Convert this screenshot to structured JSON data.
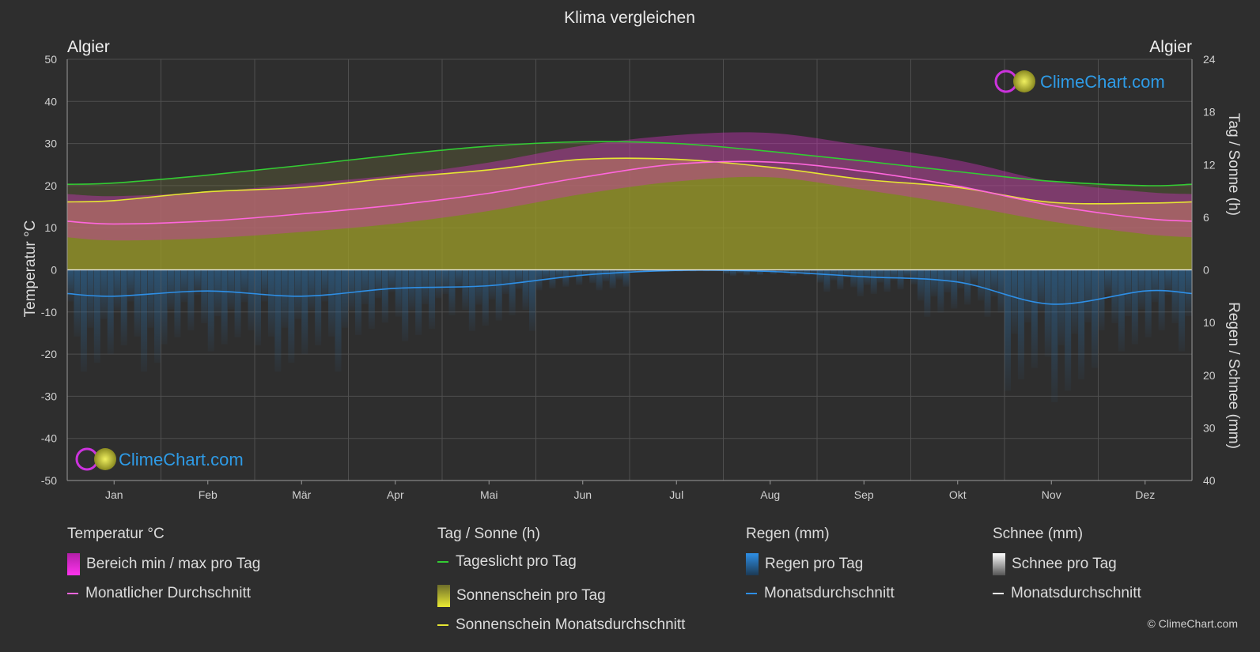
{
  "chart_data": {
    "type": "area",
    "title": "Klima vergleichen",
    "location_left": "Algier",
    "location_right": "Algier",
    "ylabel_left": "Temperatur °C",
    "ylabel_right_top": "Tag / Sonne (h)",
    "ylabel_right_bottom": "Regen / Schnee (mm)",
    "ylim_left": [
      -50,
      50
    ],
    "left_ticks": [
      50,
      40,
      30,
      20,
      10,
      0,
      -10,
      -20,
      -30,
      -40,
      -50
    ],
    "right_top_ticks": [
      24,
      18,
      12,
      6,
      0
    ],
    "right_bottom_ticks": [
      10,
      20,
      30,
      40
    ],
    "months": [
      "Jan",
      "Feb",
      "Mär",
      "Apr",
      "Mai",
      "Jun",
      "Jul",
      "Aug",
      "Sep",
      "Okt",
      "Nov",
      "Dez"
    ],
    "grid": true,
    "series": [
      {
        "name": "Tageslicht pro Tag",
        "unit": "h",
        "color": "#33cc33",
        "values": [
          9.9,
          10.8,
          11.9,
          13.1,
          14.1,
          14.6,
          14.4,
          13.5,
          12.4,
          11.2,
          10.1,
          9.6
        ]
      },
      {
        "name": "Sonnenschein Monatsdurchschnitt",
        "unit": "h",
        "color": "#e6e633",
        "values": [
          7.9,
          8.9,
          9.4,
          10.5,
          11.4,
          12.6,
          12.6,
          11.7,
          10.3,
          9.4,
          7.7,
          7.6
        ]
      },
      {
        "name": "Monatlicher Durchschnitt",
        "unit": "°C",
        "color": "#ff66dd",
        "values": [
          10.9,
          11.6,
          13.3,
          15.4,
          18.2,
          22.0,
          25.1,
          25.6,
          23.4,
          19.9,
          15.3,
          12.2
        ]
      },
      {
        "name": "Regen Monatsdurchschnitt",
        "unit": "mm",
        "color": "#2e8fe6",
        "values": [
          5.0,
          4.0,
          5.0,
          3.5,
          3.0,
          1.0,
          0.1,
          0.3,
          1.3,
          2.3,
          6.5,
          4.0
        ]
      }
    ],
    "temp_range": {
      "name": "Bereich min / max pro Tag",
      "min": [
        7.0,
        7.5,
        9.0,
        11.0,
        14.0,
        18.0,
        21.0,
        22.0,
        19.0,
        15.5,
        11.5,
        8.5
      ],
      "max": [
        17.5,
        18.5,
        20.5,
        22.5,
        25.5,
        29.5,
        32.0,
        32.5,
        29.5,
        26.0,
        21.0,
        18.5
      ]
    }
  },
  "legend": {
    "temp": {
      "title": "Temperatur °C",
      "items": [
        "Bereich min / max pro Tag",
        "Monatlicher Durchschnitt"
      ]
    },
    "sun": {
      "title": "Tag / Sonne (h)",
      "items": [
        "Tageslicht pro Tag",
        "Sonnenschein pro Tag",
        "Sonnenschein Monatsdurchschnitt"
      ]
    },
    "rain": {
      "title": "Regen (mm)",
      "items": [
        "Regen pro Tag",
        "Monatsdurchschnitt"
      ]
    },
    "snow": {
      "title": "Schnee (mm)",
      "items": [
        "Schnee pro Tag",
        "Monatsdurchschnitt"
      ]
    }
  },
  "brand": "ClimeChart.com",
  "copyright": "© ClimeChart.com",
  "colors": {
    "background": "#2e2e2e",
    "grid": "#555555",
    "daylight": "#33cc33",
    "sunshine_fill": "#9a9a28",
    "sunshine_avg": "#e6e633",
    "temp_range": "#cc33bb",
    "temp_avg": "#ff66dd",
    "rain": "#2e8fe6",
    "snow_avg": "#ffffff",
    "brand_blue": "#2e9be6"
  }
}
